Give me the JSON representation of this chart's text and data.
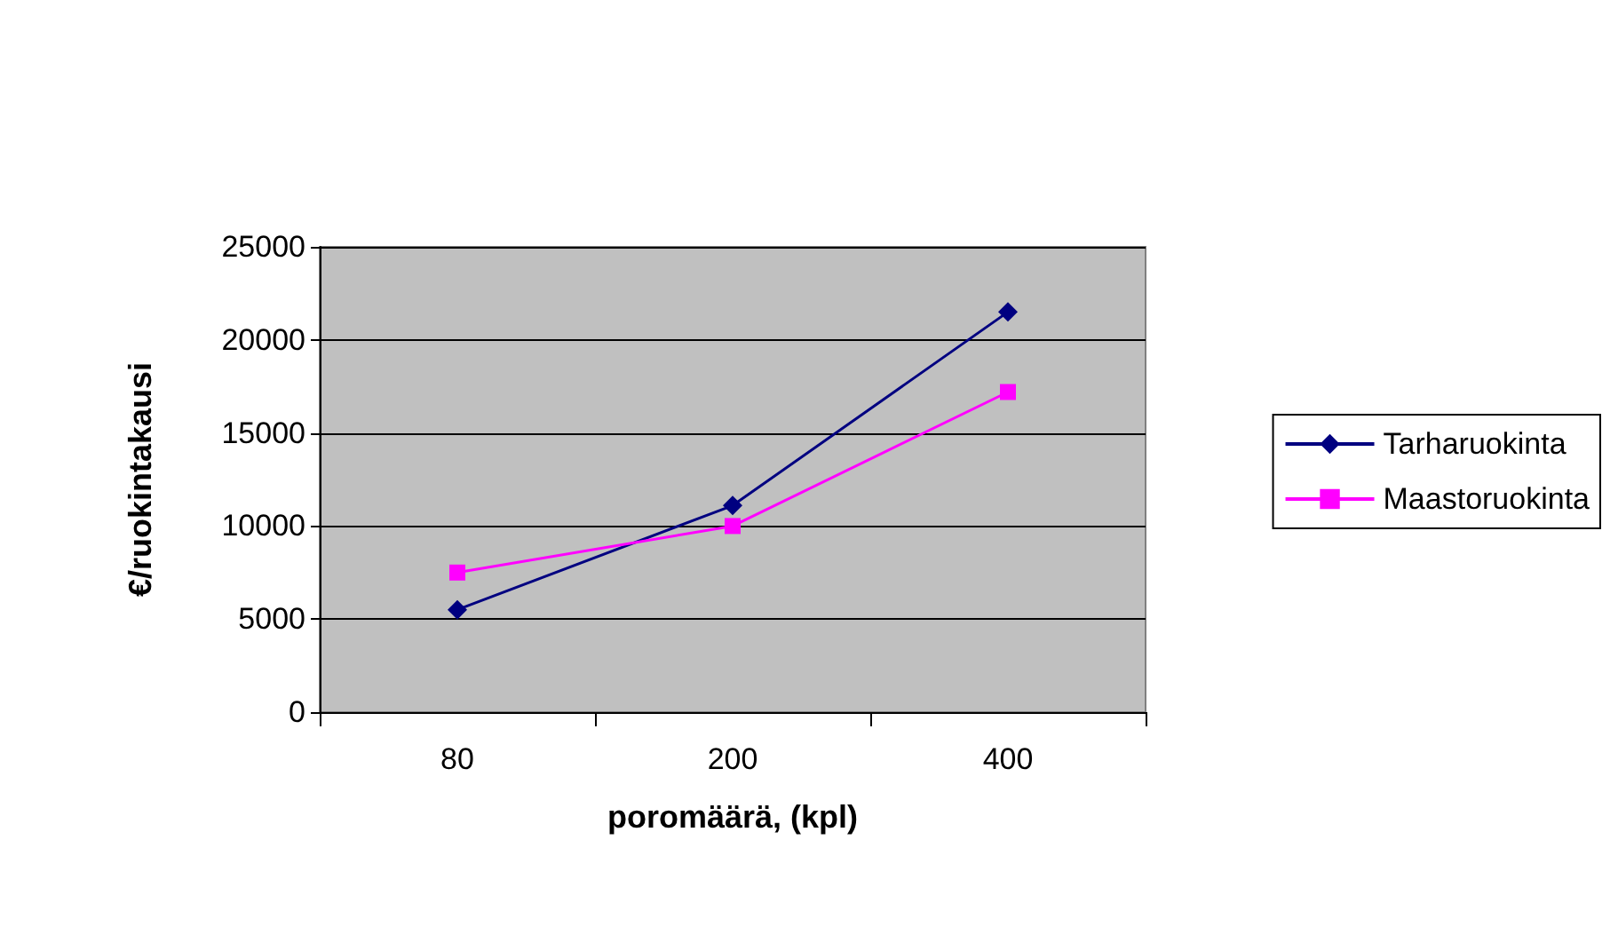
{
  "chart_data": {
    "type": "line",
    "xlabel": "poromäärä, (kpl)",
    "ylabel": "€/ruokintakausi",
    "categories": [
      "80",
      "200",
      "400"
    ],
    "series": [
      {
        "name": "Tarharuokinta",
        "color": "#000080",
        "marker": "diamond",
        "values": [
          5500,
          11100,
          21500
        ]
      },
      {
        "name": "Maastoruokinta",
        "color": "#ff00ff",
        "marker": "square",
        "values": [
          7500,
          10000,
          17200
        ]
      }
    ],
    "ylim": [
      0,
      25000
    ],
    "yticks": [
      0,
      5000,
      10000,
      15000,
      20000,
      25000
    ],
    "grid": "y",
    "legend": "right"
  }
}
